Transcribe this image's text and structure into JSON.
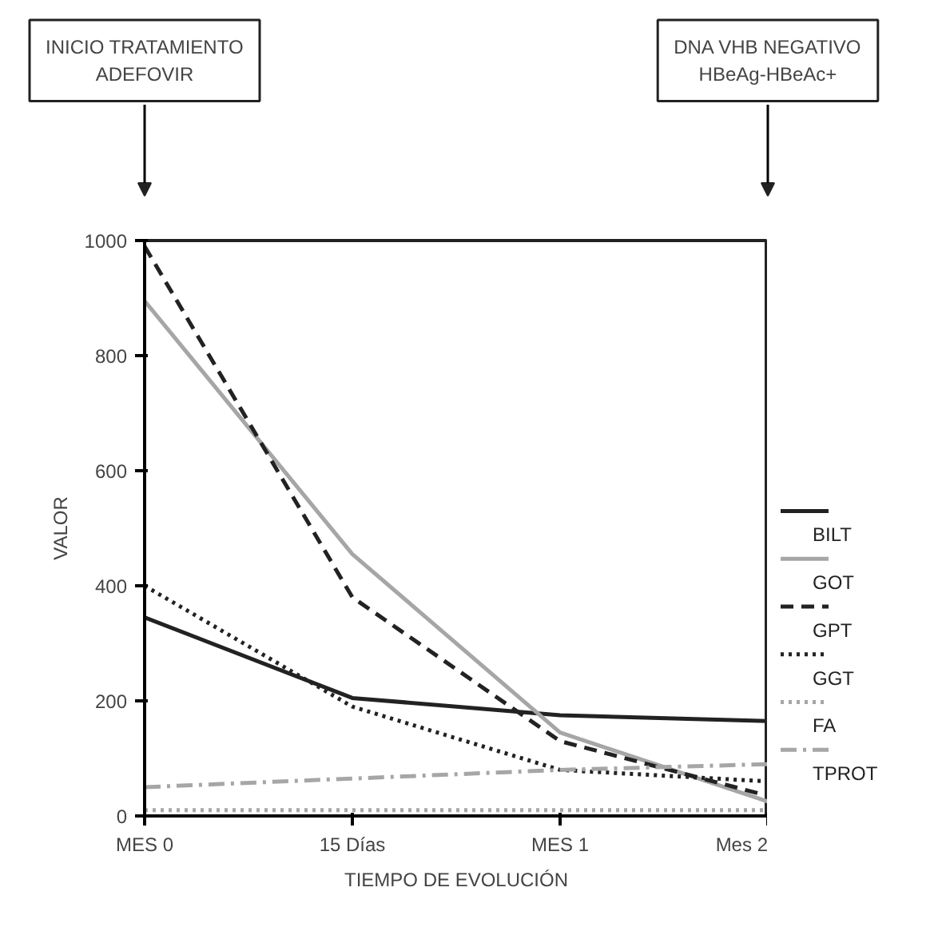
{
  "chart_data": {
    "type": "line",
    "xlabel": "TIEMPO DE EVOLUCIÓN",
    "ylabel": "VALOR",
    "categories": [
      "MES 0",
      "15 Días",
      "MES 1",
      "Mes 2"
    ],
    "ylim": [
      0,
      1000
    ],
    "yticks": [
      0,
      200,
      400,
      600,
      800,
      1000
    ],
    "grid": false,
    "legend": "right",
    "marker": "none",
    "series": [
      {
        "name": "BILT",
        "color": "#222222",
        "line_style": "solid",
        "values": [
          345,
          205,
          175,
          165
        ]
      },
      {
        "name": "GOT",
        "color": "#a6a6a6",
        "line_style": "solid",
        "values": [
          895,
          455,
          145,
          25
        ]
      },
      {
        "name": "GPT",
        "color": "#222222",
        "line_style": "dashed",
        "values": [
          990,
          380,
          130,
          35
        ]
      },
      {
        "name": "GGT",
        "color": "#222222",
        "line_style": "dotted",
        "values": [
          400,
          190,
          80,
          60
        ]
      },
      {
        "name": "FA",
        "color": "#a6a6a6",
        "line_style": "dotted",
        "values": [
          10,
          10,
          10,
          10
        ]
      },
      {
        "name": "TPROT",
        "color": "#a6a6a6",
        "line_style": "dashdot",
        "values": [
          50,
          65,
          80,
          90
        ]
      }
    ],
    "annotations": [
      "INICIO TRATAMIENTO\nADEFOVIR",
      "DNA VHB NEGATIVO\nHBeAg-HBeAc+"
    ]
  }
}
